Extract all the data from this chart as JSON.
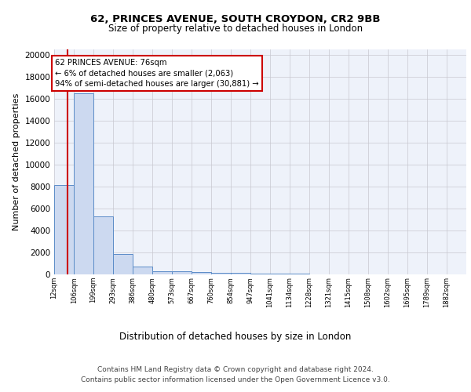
{
  "title1": "62, PRINCES AVENUE, SOUTH CROYDON, CR2 9BB",
  "title2": "Size of property relative to detached houses in London",
  "xlabel": "Distribution of detached houses by size in London",
  "ylabel": "Number of detached properties",
  "bar_edges": [
    12,
    106,
    199,
    293,
    386,
    480,
    573,
    667,
    760,
    854,
    947,
    1041,
    1134,
    1228,
    1321,
    1415,
    1508,
    1602,
    1695,
    1789,
    1882
  ],
  "bar_heights": [
    8100,
    16500,
    5300,
    1850,
    700,
    300,
    250,
    200,
    150,
    150,
    80,
    60,
    40,
    30,
    20,
    15,
    10,
    8,
    5,
    3,
    2
  ],
  "bar_color": "#ccd9f0",
  "bar_edge_color": "#5b8cc8",
  "grid_color": "#c8c8d0",
  "bg_color": "#eef2fa",
  "property_sqm": 76,
  "property_line_color": "#cc0000",
  "annotation_text": "62 PRINCES AVENUE: 76sqm\n← 6% of detached houses are smaller (2,063)\n94% of semi-detached houses are larger (30,881) →",
  "annotation_box_color": "#ffffff",
  "annotation_border_color": "#cc0000",
  "ylim": [
    0,
    20500
  ],
  "yticks": [
    0,
    2000,
    4000,
    6000,
    8000,
    10000,
    12000,
    14000,
    16000,
    18000,
    20000
  ],
  "footnote1": "Contains HM Land Registry data © Crown copyright and database right 2024.",
  "footnote2": "Contains public sector information licensed under the Open Government Licence v3.0."
}
